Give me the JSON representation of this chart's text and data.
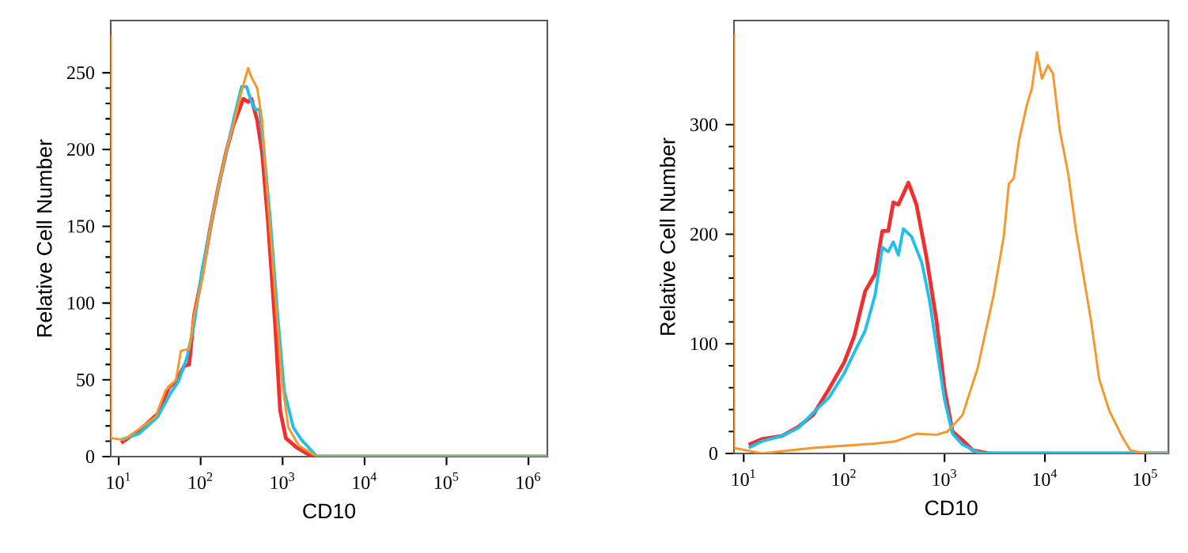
{
  "chart_data": [
    {
      "type": "line",
      "xlabel": "CD10",
      "ylabel": "Relative Cell Number",
      "log": "x",
      "xlim": [
        8,
        1700000
      ],
      "xticks": [
        {
          "value": 10,
          "label": "10$^{1}$"
        },
        {
          "value": 100,
          "label": "10$^{2}$"
        },
        {
          "value": 1000,
          "label": "10$^{3}$"
        },
        {
          "value": 10000,
          "label": "10$^{4}$"
        },
        {
          "value": 100000,
          "label": "10$^{5}$"
        },
        {
          "value": 1000000,
          "label": "10$^{6}$"
        }
      ],
      "ylim": [
        0,
        284
      ],
      "yticks": [
        0,
        50,
        100,
        150,
        200,
        250
      ],
      "series": [
        {
          "color": "#f03030",
          "x": [
            10.7,
            17.8,
            30,
            41,
            50.1,
            63,
            72.4,
            83.2,
            105,
            129,
            162,
            204,
            251,
            331,
            380,
            417,
            490,
            562,
            661,
            813,
            933,
            1096,
            1480,
            2290,
            1700000
          ],
          "values": [
            9,
            17,
            28,
            45,
            49,
            59,
            60,
            92,
            119,
            147,
            174,
            198,
            216,
            233,
            231,
            233,
            219,
            198,
            154,
            85,
            30,
            12,
            6,
            0,
            0
          ]
        },
        {
          "color": "#1ec0ec",
          "x": [
            10.7,
            17.8,
            30,
            43.7,
            53.7,
            67.6,
            83.2,
            105,
            129,
            162,
            204,
            251,
            316,
            363,
            417,
            468,
            525,
            603,
            708,
            871,
            1047,
            1349,
            1698,
            2630,
            1700000
          ],
          "values": [
            11,
            15,
            26,
            42,
            49,
            64,
            86,
            123,
            147,
            174,
            197,
            219,
            241,
            241,
            231,
            226,
            226,
            195,
            154,
            92,
            43,
            19,
            11,
            0,
            0
          ]
        },
        {
          "color": "#f7962a",
          "x": [
            8,
            8,
            11.5,
            17.8,
            28.2,
            37.2,
            50.1,
            57.5,
            72.4,
            83.2,
            105,
            129,
            162,
            204,
            251,
            316,
            380,
            417,
            490,
            562,
            661,
            813,
            977,
            1175,
            1585,
            2630,
            1700000
          ],
          "values": [
            274,
            12,
            11,
            18,
            26,
            43,
            50,
            69,
            70,
            92,
            116,
            147,
            174,
            198,
            216,
            238,
            253,
            247,
            240,
            219,
            167,
            105,
            50,
            19,
            7,
            0,
            0
          ]
        }
      ]
    },
    {
      "type": "line",
      "xlabel": "CD10",
      "ylabel": "Relative Cell Number",
      "log": "x",
      "xlim": [
        8,
        170000
      ],
      "xticks": [
        {
          "value": 10,
          "label": "10$^{1}$"
        },
        {
          "value": 100,
          "label": "10$^{2}$"
        },
        {
          "value": 1000,
          "label": "10$^{3}$"
        },
        {
          "value": 10000,
          "label": "10$^{4}$"
        },
        {
          "value": 100000,
          "label": "10$^{5}$"
        }
      ],
      "ylim": [
        0,
        395
      ],
      "yticks": [
        0,
        100,
        200,
        300
      ],
      "series": [
        {
          "color": "#f03030",
          "x": [
            11.2,
            15.1,
            24,
            34.7,
            49,
            70.8,
            100,
            126,
            162,
            204,
            240,
            275,
            309,
            347,
            389,
            437,
            525,
            661,
            832,
            1000,
            1200,
            1510,
            1905,
            2750,
            170000
          ],
          "values": [
            8,
            13,
            16,
            24,
            35,
            59,
            83,
            107,
            148,
            164,
            203,
            203,
            229,
            227,
            237,
            247,
            227,
            179,
            121,
            59,
            20,
            12,
            3,
            0,
            0
          ]
        },
        {
          "color": "#1ec0ec",
          "x": [
            11.2,
            15.1,
            24,
            34.7,
            49,
            70.8,
            100,
            126,
            162,
            204,
            240,
            275,
            309,
            347,
            389,
            468,
            594,
            708,
            832,
            1000,
            1200,
            1510,
            2140,
            2750,
            170000
          ],
          "values": [
            5,
            11,
            16,
            23,
            37,
            51,
            73,
            92,
            112,
            145,
            188,
            184,
            193,
            181,
            205,
            198,
            174,
            140,
            97,
            49,
            18,
            8,
            1,
            0,
            0
          ]
        },
        {
          "color": "#f7962a",
          "x": [
            8,
            8,
            15.1,
            24,
            49,
            100,
            204,
            324,
            525,
            832,
            1070,
            1510,
            2140,
            3090,
            3890,
            4370,
            4900,
            5500,
            6610,
            7410,
            8320,
            9330,
            10700,
            12000,
            14100,
            17000,
            20400,
            24000,
            28800,
            34700,
            43700,
            58900,
            70800,
            100000,
            170000
          ],
          "values": [
            383,
            5,
            0,
            2,
            5,
            7,
            9,
            11,
            18,
            17,
            20,
            35,
            78,
            145,
            198,
            246,
            251,
            285,
            318,
            333,
            366,
            342,
            354,
            347,
            294,
            256,
            203,
            164,
            121,
            68,
            39,
            15,
            3,
            0,
            0
          ]
        }
      ]
    }
  ]
}
